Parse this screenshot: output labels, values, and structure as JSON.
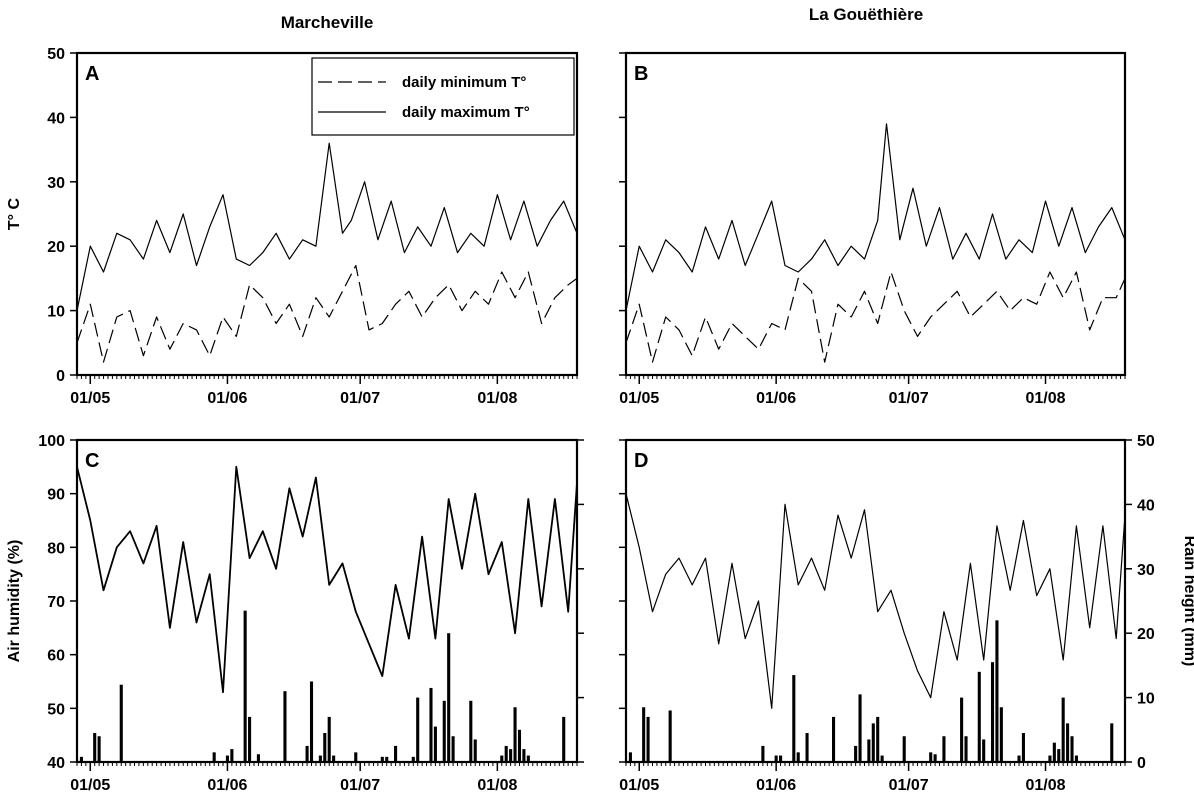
{
  "column_titles": [
    "Marcheville",
    "La Gouëthière"
  ],
  "chart_data": [
    {
      "type": "line",
      "panel": "A",
      "site": "Marcheville",
      "ylabel": "T° C",
      "ylim": [
        0,
        50
      ],
      "yticks": [
        0,
        10,
        20,
        30,
        40,
        50
      ],
      "xlim": [
        "2015-04-28",
        "2015-08-19"
      ],
      "xticks": [
        "01/05",
        "01/06",
        "01/07",
        "01/08"
      ],
      "legend": {
        "placement": "top-right"
      },
      "series": [
        {
          "name": "daily minimum T°",
          "style": "dashed",
          "x": [
            "2015-04-28",
            "2015-05-01",
            "2015-05-04",
            "2015-05-07",
            "2015-05-10",
            "2015-05-13",
            "2015-05-16",
            "2015-05-19",
            "2015-05-22",
            "2015-05-25",
            "2015-05-28",
            "2015-05-31",
            "2015-06-03",
            "2015-06-06",
            "2015-06-09",
            "2015-06-12",
            "2015-06-15",
            "2015-06-18",
            "2015-06-21",
            "2015-06-24",
            "2015-06-27",
            "2015-06-30",
            "2015-07-03",
            "2015-07-06",
            "2015-07-09",
            "2015-07-12",
            "2015-07-15",
            "2015-07-18",
            "2015-07-21",
            "2015-07-24",
            "2015-07-27",
            "2015-07-30",
            "2015-08-02",
            "2015-08-05",
            "2015-08-08",
            "2015-08-11",
            "2015-08-14",
            "2015-08-17",
            "2015-08-19"
          ],
          "y": [
            5,
            11,
            2,
            9,
            10,
            3,
            9,
            4,
            8,
            7,
            3,
            9,
            6,
            14,
            12,
            8,
            11,
            6,
            12,
            9,
            13,
            17,
            7,
            8,
            11,
            13,
            9,
            12,
            14,
            10,
            13,
            11,
            16,
            12,
            16,
            8,
            12,
            14,
            15
          ]
        },
        {
          "name": "daily maximum T°",
          "style": "solid",
          "x": [
            "2015-04-28",
            "2015-05-01",
            "2015-05-04",
            "2015-05-07",
            "2015-05-10",
            "2015-05-13",
            "2015-05-16",
            "2015-05-19",
            "2015-05-22",
            "2015-05-25",
            "2015-05-28",
            "2015-05-31",
            "2015-06-03",
            "2015-06-06",
            "2015-06-09",
            "2015-06-12",
            "2015-06-15",
            "2015-06-18",
            "2015-06-21",
            "2015-06-24",
            "2015-06-27",
            "2015-06-29",
            "2015-07-02",
            "2015-07-05",
            "2015-07-08",
            "2015-07-11",
            "2015-07-14",
            "2015-07-17",
            "2015-07-20",
            "2015-07-23",
            "2015-07-26",
            "2015-07-29",
            "2015-08-01",
            "2015-08-04",
            "2015-08-07",
            "2015-08-10",
            "2015-08-13",
            "2015-08-16",
            "2015-08-19"
          ],
          "y": [
            10,
            20,
            16,
            22,
            21,
            18,
            24,
            19,
            25,
            17,
            23,
            28,
            18,
            17,
            19,
            22,
            18,
            21,
            20,
            36,
            22,
            24,
            30,
            21,
            27,
            19,
            23,
            20,
            26,
            19,
            22,
            20,
            28,
            21,
            27,
            20,
            24,
            27,
            22
          ]
        }
      ]
    },
    {
      "type": "line",
      "panel": "B",
      "site": "La Gouëthière",
      "ylabel": "",
      "ylim": [
        0,
        50
      ],
      "xlim": [
        "2015-04-28",
        "2015-08-19"
      ],
      "xticks": [
        "01/05",
        "01/06",
        "01/07",
        "01/08"
      ],
      "series": [
        {
          "name": "daily minimum T°",
          "style": "dashed",
          "x": [
            "2015-04-28",
            "2015-05-01",
            "2015-05-04",
            "2015-05-07",
            "2015-05-10",
            "2015-05-13",
            "2015-05-16",
            "2015-05-19",
            "2015-05-22",
            "2015-05-25",
            "2015-05-28",
            "2015-05-31",
            "2015-06-03",
            "2015-06-06",
            "2015-06-09",
            "2015-06-12",
            "2015-06-15",
            "2015-06-18",
            "2015-06-21",
            "2015-06-24",
            "2015-06-27",
            "2015-06-30",
            "2015-07-03",
            "2015-07-06",
            "2015-07-09",
            "2015-07-12",
            "2015-07-15",
            "2015-07-18",
            "2015-07-21",
            "2015-07-24",
            "2015-07-27",
            "2015-07-30",
            "2015-08-02",
            "2015-08-05",
            "2015-08-08",
            "2015-08-11",
            "2015-08-14",
            "2015-08-17",
            "2015-08-19"
          ],
          "y": [
            5,
            11,
            2,
            9,
            7,
            3,
            9,
            4,
            8,
            6,
            4,
            8,
            7,
            15,
            13,
            2,
            11,
            9,
            13,
            8,
            16,
            10,
            6,
            9,
            11,
            13,
            9,
            11,
            13,
            10,
            12,
            11,
            16,
            12,
            16,
            7,
            12,
            12,
            15
          ]
        },
        {
          "name": "daily maximum T°",
          "style": "solid",
          "x": [
            "2015-04-28",
            "2015-05-01",
            "2015-05-04",
            "2015-05-07",
            "2015-05-10",
            "2015-05-13",
            "2015-05-16",
            "2015-05-19",
            "2015-05-22",
            "2015-05-25",
            "2015-05-28",
            "2015-05-31",
            "2015-06-03",
            "2015-06-06",
            "2015-06-09",
            "2015-06-12",
            "2015-06-15",
            "2015-06-18",
            "2015-06-21",
            "2015-06-24",
            "2015-06-26",
            "2015-06-29",
            "2015-07-02",
            "2015-07-05",
            "2015-07-08",
            "2015-07-11",
            "2015-07-14",
            "2015-07-17",
            "2015-07-20",
            "2015-07-23",
            "2015-07-26",
            "2015-07-29",
            "2015-08-01",
            "2015-08-04",
            "2015-08-07",
            "2015-08-10",
            "2015-08-13",
            "2015-08-16",
            "2015-08-19"
          ],
          "y": [
            10,
            20,
            16,
            21,
            19,
            16,
            23,
            18,
            24,
            17,
            22,
            27,
            17,
            16,
            18,
            21,
            17,
            20,
            18,
            24,
            39,
            21,
            29,
            20,
            26,
            18,
            22,
            18,
            25,
            18,
            21,
            19,
            27,
            20,
            26,
            19,
            23,
            26,
            21
          ]
        }
      ]
    },
    {
      "type": "line",
      "panel": "C",
      "site": "Marcheville",
      "ylabel": "Air humidity (%)",
      "ylim": [
        40,
        100
      ],
      "yticks": [
        40,
        50,
        60,
        70,
        80,
        90,
        100
      ],
      "y2lim": [
        0,
        50
      ],
      "xlim": [
        "2015-04-28",
        "2015-08-19"
      ],
      "xticks": [
        "01/05",
        "01/06",
        "01/07",
        "01/08"
      ],
      "series": [
        {
          "name": "",
          "type": "line",
          "axis": "left",
          "x": [
            "2015-04-28",
            "2015-05-01",
            "2015-05-04",
            "2015-05-07",
            "2015-05-10",
            "2015-05-13",
            "2015-05-16",
            "2015-05-19",
            "2015-05-22",
            "2015-05-25",
            "2015-05-28",
            "2015-05-31",
            "2015-06-03",
            "2015-06-06",
            "2015-06-09",
            "2015-06-12",
            "2015-06-15",
            "2015-06-18",
            "2015-06-21",
            "2015-06-24",
            "2015-06-27",
            "2015-06-30",
            "2015-07-03",
            "2015-07-06",
            "2015-07-09",
            "2015-07-12",
            "2015-07-15",
            "2015-07-18",
            "2015-07-21",
            "2015-07-24",
            "2015-07-27",
            "2015-07-30",
            "2015-08-02",
            "2015-08-05",
            "2015-08-08",
            "2015-08-11",
            "2015-08-14",
            "2015-08-17",
            "2015-08-19"
          ],
          "y": [
            95,
            85,
            72,
            80,
            83,
            77,
            84,
            65,
            81,
            66,
            75,
            53,
            95,
            78,
            83,
            76,
            91,
            82,
            93,
            73,
            77,
            68,
            62,
            56,
            73,
            63,
            82,
            63,
            89,
            76,
            90,
            75,
            81,
            64,
            89,
            69,
            89,
            68,
            92
          ]
        },
        {
          "name": "",
          "type": "bar",
          "axis": "right",
          "x": [
            "2015-04-29",
            "2015-05-02",
            "2015-05-03",
            "2015-05-08",
            "2015-05-29",
            "2015-06-01",
            "2015-06-02",
            "2015-06-05",
            "2015-06-06",
            "2015-06-08",
            "2015-06-14",
            "2015-06-19",
            "2015-06-20",
            "2015-06-22",
            "2015-06-23",
            "2015-06-24",
            "2015-06-25",
            "2015-06-30",
            "2015-07-06",
            "2015-07-07",
            "2015-07-09",
            "2015-07-13",
            "2015-07-14",
            "2015-07-17",
            "2015-07-18",
            "2015-07-20",
            "2015-07-21",
            "2015-07-22",
            "2015-07-26",
            "2015-07-27",
            "2015-08-02",
            "2015-08-03",
            "2015-08-04",
            "2015-08-05",
            "2015-08-06",
            "2015-08-07",
            "2015-08-08",
            "2015-08-16"
          ],
          "y": [
            0.8,
            4.5,
            4,
            12,
            1.5,
            1,
            2,
            23.5,
            7,
            1.2,
            11,
            2.5,
            12.5,
            1,
            4.5,
            7,
            1,
            1.5,
            0.8,
            0.8,
            2.5,
            0.8,
            10,
            11.5,
            5.5,
            9.5,
            20,
            4,
            9.5,
            3.5,
            1,
            2.5,
            2,
            8.5,
            5,
            2,
            1,
            7
          ]
        }
      ]
    },
    {
      "type": "line",
      "panel": "D",
      "site": "La Gouëthière",
      "ylabel": "",
      "y2label": "Rain height (mm)",
      "ylim": [
        40,
        100
      ],
      "y2lim": [
        0,
        50
      ],
      "y2ticks": [
        0,
        10,
        20,
        30,
        40,
        50
      ],
      "xlim": [
        "2015-04-28",
        "2015-08-19"
      ],
      "xticks": [
        "01/05",
        "01/06",
        "01/07",
        "01/08"
      ],
      "series": [
        {
          "name": "",
          "type": "line",
          "axis": "left",
          "x": [
            "2015-04-28",
            "2015-05-01",
            "2015-05-04",
            "2015-05-07",
            "2015-05-10",
            "2015-05-13",
            "2015-05-16",
            "2015-05-19",
            "2015-05-22",
            "2015-05-25",
            "2015-05-28",
            "2015-05-31",
            "2015-06-03",
            "2015-06-06",
            "2015-06-09",
            "2015-06-12",
            "2015-06-15",
            "2015-06-18",
            "2015-06-21",
            "2015-06-24",
            "2015-06-27",
            "2015-06-30",
            "2015-07-03",
            "2015-07-06",
            "2015-07-09",
            "2015-07-12",
            "2015-07-15",
            "2015-07-18",
            "2015-07-21",
            "2015-07-24",
            "2015-07-27",
            "2015-07-30",
            "2015-08-02",
            "2015-08-05",
            "2015-08-08",
            "2015-08-11",
            "2015-08-14",
            "2015-08-17",
            "2015-08-19"
          ],
          "y": [
            90,
            80,
            68,
            75,
            78,
            73,
            78,
            62,
            77,
            63,
            70,
            50,
            88,
            73,
            78,
            72,
            86,
            78,
            87,
            68,
            72,
            64,
            57,
            52,
            68,
            59,
            77,
            59,
            84,
            72,
            85,
            71,
            76,
            59,
            84,
            65,
            84,
            63,
            86
          ]
        },
        {
          "name": "",
          "type": "bar",
          "axis": "right",
          "x": [
            "2015-04-29",
            "2015-05-02",
            "2015-05-03",
            "2015-05-08",
            "2015-05-29",
            "2015-06-01",
            "2015-06-02",
            "2015-06-05",
            "2015-06-06",
            "2015-06-08",
            "2015-06-14",
            "2015-06-19",
            "2015-06-20",
            "2015-06-22",
            "2015-06-23",
            "2015-06-24",
            "2015-06-25",
            "2015-06-30",
            "2015-07-06",
            "2015-07-07",
            "2015-07-09",
            "2015-07-13",
            "2015-07-14",
            "2015-07-17",
            "2015-07-18",
            "2015-07-20",
            "2015-07-21",
            "2015-07-22",
            "2015-07-26",
            "2015-07-27",
            "2015-08-02",
            "2015-08-03",
            "2015-08-04",
            "2015-08-05",
            "2015-08-06",
            "2015-08-07",
            "2015-08-08",
            "2015-08-16"
          ],
          "y": [
            1.5,
            8.5,
            7,
            8,
            2.5,
            1,
            1,
            13.5,
            1.5,
            4.5,
            7,
            2.5,
            10.5,
            3.5,
            6,
            7,
            1,
            4,
            1.5,
            1.2,
            4,
            10,
            4,
            14,
            3.5,
            15.5,
            22,
            8.5,
            1,
            4.5,
            1,
            3,
            2,
            10,
            6,
            4,
            1,
            6
          ]
        }
      ]
    }
  ]
}
